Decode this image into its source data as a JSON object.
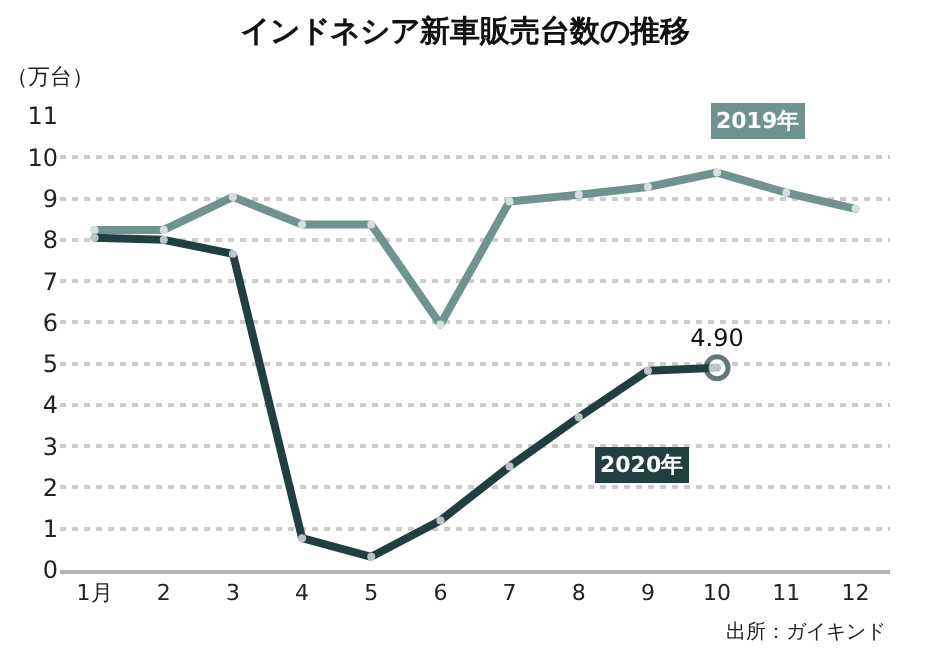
{
  "chart_data": {
    "type": "line",
    "title": "インドネシア新車販売台数の推移",
    "ylabel": "（万台）",
    "categories": [
      "1月",
      "2",
      "3",
      "4",
      "5",
      "6",
      "7",
      "8",
      "9",
      "10",
      "11",
      "12"
    ],
    "ylim": [
      0,
      11
    ],
    "yticks": [
      0,
      1,
      2,
      3,
      4,
      5,
      6,
      7,
      8,
      9,
      10,
      11
    ],
    "grid": "y",
    "legend": false,
    "marker": "circle",
    "line_style": "solid",
    "series": [
      {
        "name": "2019年",
        "color": "#6f9490",
        "values": [
          8.24,
          8.24,
          9.04,
          8.37,
          8.37,
          5.95,
          8.93,
          9.09,
          9.28,
          9.63,
          9.14,
          8.75
        ]
      },
      {
        "name": "2020年",
        "color": "#213f40",
        "values": [
          8.05,
          8.0,
          7.66,
          0.77,
          0.32,
          1.2,
          2.51,
          3.7,
          4.83,
          4.9,
          null,
          null
        ],
        "value_labels": [
          null,
          null,
          null,
          null,
          null,
          null,
          null,
          null,
          null,
          "4.90",
          null,
          null
        ]
      }
    ],
    "annotations": [
      "出所：ガイキンド"
    ]
  }
}
